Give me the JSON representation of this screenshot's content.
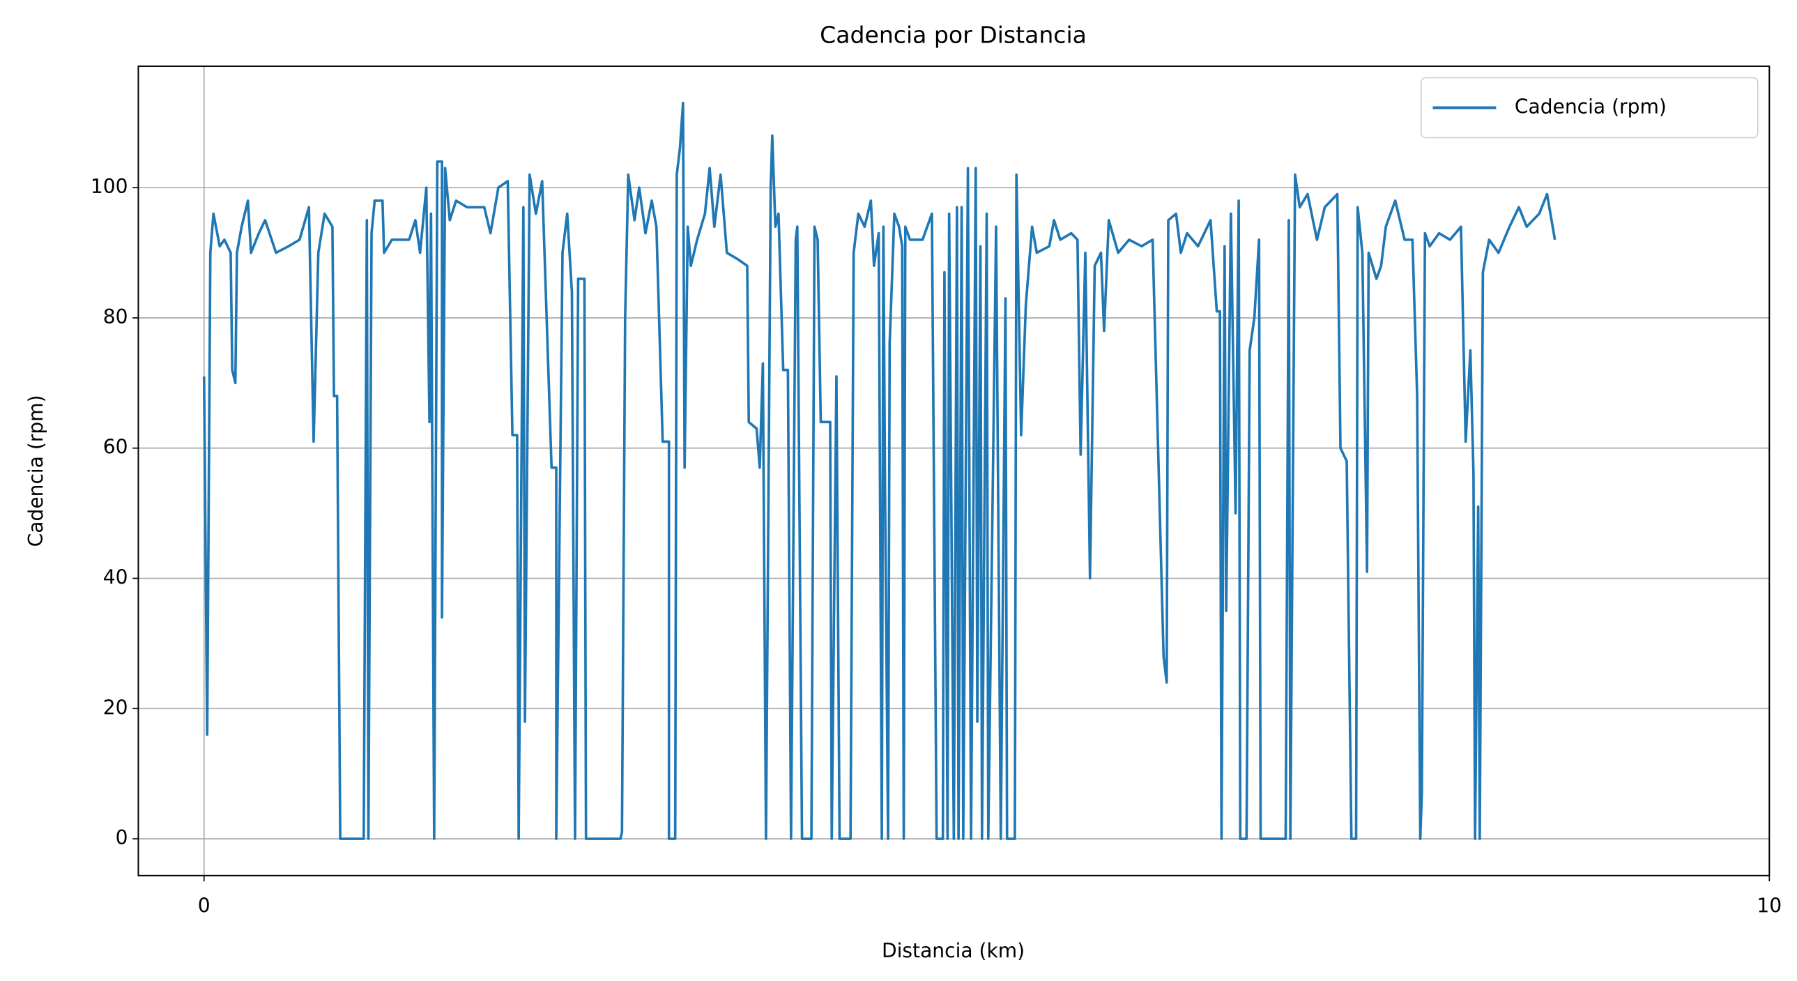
{
  "chart_data": {
    "type": "line",
    "title": "Cadencia por Distancia",
    "xlabel": "Distancia (km)",
    "ylabel": "Cadencia (rpm)",
    "x": [
      0.0,
      0.02,
      0.04,
      0.06,
      0.1,
      0.13,
      0.17,
      0.18,
      0.2,
      0.21,
      0.24,
      0.28,
      0.3,
      0.35,
      0.39,
      0.46,
      0.54,
      0.61,
      0.67,
      0.7,
      0.73,
      0.77,
      0.82,
      0.83,
      0.85,
      0.87,
      1.02,
      1.04,
      1.05,
      1.07,
      1.09,
      1.14,
      1.15,
      1.2,
      1.31,
      1.35,
      1.38,
      1.42,
      1.44,
      1.45,
      1.47,
      1.49,
      1.52,
      1.52,
      1.54,
      1.57,
      1.61,
      1.68,
      1.79,
      1.83,
      1.88,
      1.94,
      1.97,
      2.0,
      2.01,
      2.04,
      2.05,
      2.08,
      2.12,
      2.16,
      2.22,
      2.25,
      2.25,
      2.29,
      2.32,
      2.35,
      2.37,
      2.39,
      2.43,
      2.44,
      2.66,
      2.67,
      2.69,
      2.71,
      2.75,
      2.78,
      2.82,
      2.86,
      2.89,
      2.93,
      2.97,
      2.97,
      3.01,
      3.02,
      3.04,
      3.06,
      3.07,
      3.09,
      3.11,
      3.15,
      3.2,
      3.23,
      3.26,
      3.3,
      3.34,
      3.41,
      3.47,
      3.48,
      3.53,
      3.55,
      3.57,
      3.59,
      3.62,
      3.63,
      3.65,
      3.67,
      3.7,
      3.73,
      3.75,
      3.78,
      3.79,
      3.82,
      3.88,
      3.9,
      3.92,
      3.94,
      4.0,
      4.01,
      4.04,
      4.06,
      4.13,
      4.15,
      4.18,
      4.22,
      4.26,
      4.28,
      4.31,
      4.33,
      4.34,
      4.35,
      4.37,
      4.38,
      4.41,
      4.44,
      4.46,
      4.47,
      4.48,
      4.51,
      4.59,
      4.65,
      4.68,
      4.72,
      4.73,
      4.75,
      4.76,
      4.79,
      4.81,
      4.82,
      4.84,
      4.85,
      4.88,
      4.9,
      4.93,
      4.94,
      4.96,
      4.97,
      5.0,
      5.01,
      5.06,
      5.09,
      5.12,
      5.13,
      5.18,
      5.19,
      5.22,
      5.25,
      5.29,
      5.32,
      5.4,
      5.43,
      5.47,
      5.54,
      5.58,
      5.6,
      5.63,
      5.66,
      5.69,
      5.73,
      5.75,
      5.78,
      5.84,
      5.91,
      5.99,
      6.06,
      6.13,
      6.15,
      6.16,
      6.21,
      6.24,
      6.28,
      6.35,
      6.43,
      6.47,
      6.49,
      6.5,
      6.52,
      6.53,
      6.56,
      6.59,
      6.61,
      6.62,
      6.66,
      6.68,
      6.71,
      6.74,
      6.75,
      6.91,
      6.93,
      6.94,
      6.97,
      7.0,
      7.05,
      7.11,
      7.16,
      7.24,
      7.26,
      7.3,
      7.33,
      7.36,
      7.37,
      7.4,
      7.43,
      7.44,
      7.49,
      7.52,
      7.55,
      7.61,
      7.67,
      7.72,
      7.75,
      7.77,
      7.78,
      7.8,
      7.83,
      7.89,
      7.96,
      8.03,
      8.06,
      8.09,
      8.11,
      8.12,
      8.14,
      8.15,
      8.17,
      8.21,
      8.27,
      8.34,
      8.4,
      8.45,
      8.53,
      8.58,
      8.63
    ],
    "series": [
      {
        "name": "Cadencia (rpm)",
        "color": "#1f77b4",
        "values": [
          71,
          16,
          90,
          96,
          91,
          92,
          90,
          72,
          70,
          90,
          94,
          98,
          90,
          93,
          95,
          90,
          91,
          92,
          97,
          61,
          90,
          96,
          94,
          68,
          68,
          0,
          0,
          95,
          0,
          93,
          98,
          98,
          90,
          92,
          92,
          95,
          90,
          100,
          64,
          96,
          0,
          104,
          104,
          34,
          103,
          95,
          98,
          97,
          97,
          93,
          100,
          101,
          62,
          62,
          0,
          97,
          18,
          102,
          96,
          101,
          57,
          57,
          0,
          90,
          96,
          84,
          0,
          86,
          86,
          0,
          0,
          1,
          80,
          102,
          95,
          100,
          93,
          98,
          94,
          61,
          61,
          0,
          0,
          102,
          106,
          113,
          57,
          94,
          88,
          92,
          96,
          103,
          94,
          102,
          90,
          89,
          88,
          64,
          63,
          57,
          73,
          0,
          100,
          108,
          94,
          96,
          72,
          72,
          0,
          92,
          94,
          0,
          0,
          94,
          92,
          64,
          64,
          0,
          71,
          0,
          0,
          90,
          96,
          94,
          98,
          88,
          93,
          0,
          94,
          55,
          0,
          76,
          96,
          94,
          91,
          0,
          94,
          92,
          92,
          96,
          0,
          0,
          87,
          0,
          96,
          0,
          97,
          0,
          97,
          0,
          103,
          0,
          103,
          18,
          91,
          0,
          96,
          0,
          94,
          0,
          83,
          0,
          0,
          102,
          62,
          82,
          94,
          90,
          91,
          95,
          92,
          93,
          92,
          59,
          90,
          40,
          88,
          90,
          78,
          95,
          90,
          92,
          91,
          92,
          28,
          24,
          95,
          96,
          90,
          93,
          91,
          95,
          81,
          81,
          0,
          91,
          35,
          96,
          50,
          98,
          0,
          0,
          75,
          80,
          92,
          0,
          0,
          95,
          0,
          102,
          97,
          99,
          92,
          97,
          99,
          60,
          58,
          0,
          0,
          97,
          90,
          41,
          90,
          86,
          88,
          94,
          98,
          92,
          92,
          68,
          0,
          7,
          93,
          91,
          93,
          92,
          94,
          61,
          75,
          56,
          0,
          51,
          0,
          87,
          92,
          90,
          94,
          97,
          94,
          96,
          99,
          92
        ]
      }
    ],
    "xlim": [
      -0.42,
      10
    ],
    "ylim": [
      -5.65,
      118.65
    ],
    "xticks": [
      0,
      10
    ],
    "yticks": [
      0,
      20,
      40,
      60,
      80,
      100
    ],
    "grid": true,
    "legend": "upper right"
  }
}
